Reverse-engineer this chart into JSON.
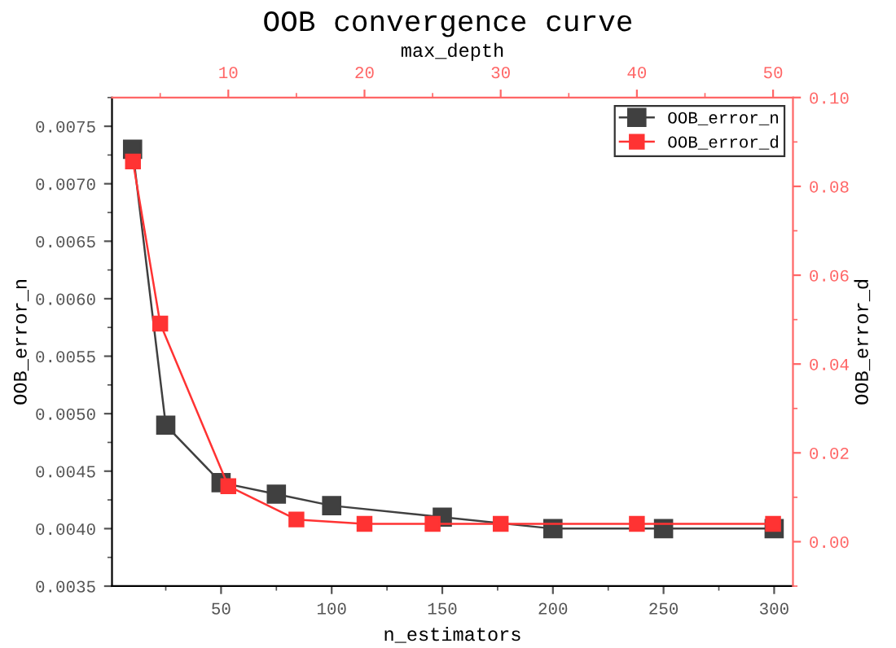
{
  "chart_data": [
    {
      "type": "line",
      "title": "OOB convergence curve",
      "xlabel": "n_estimators",
      "ylabel": "OOB_error_n",
      "xlim": [
        0.7,
        308.5
      ],
      "xticks": [
        50,
        100,
        150,
        200,
        250,
        300
      ],
      "ylim": [
        0.0035,
        0.00775
      ],
      "yticks": [
        {
          "value": 0.0035,
          "label": "0.0035"
        },
        {
          "value": 0.004,
          "label": "0.0040"
        },
        {
          "value": 0.0045,
          "label": "0.0045"
        },
        {
          "value": 0.005,
          "label": "0.0050"
        },
        {
          "value": 0.0055,
          "label": "0.0055"
        },
        {
          "value": 0.006,
          "label": "0.0060"
        },
        {
          "value": 0.0065,
          "label": "0.0065"
        },
        {
          "value": 0.007,
          "label": "0.0070"
        },
        {
          "value": 0.0075,
          "label": "0.0075"
        }
      ],
      "marker": "square",
      "line_style": "solid",
      "legend": "top right",
      "grid": false,
      "series": [
        {
          "name": "OOB_error_n",
          "color": "#404040",
          "x": [
            10,
            25,
            50,
            75,
            100,
            150,
            200,
            250,
            300
          ],
          "values": [
            0.0073,
            0.0049,
            0.0044,
            0.0043,
            0.0042,
            0.0041,
            0.004,
            0.004,
            0.004
          ]
        }
      ]
    },
    {
      "type": "line",
      "xlabel": "max_depth",
      "ylabel": "OOB_error_d",
      "xlim": [
        1.46,
        51.46
      ],
      "xticks": [
        10,
        20,
        30,
        40,
        50
      ],
      "ylim": [
        -0.01,
        0.1
      ],
      "yticks": [
        {
          "value": 0,
          "label": "0.00"
        },
        {
          "value": 0.02,
          "label": "0.02"
        },
        {
          "value": 0.04,
          "label": "0.04"
        },
        {
          "value": 0.06,
          "label": "0.06"
        },
        {
          "value": 0.08,
          "label": "0.08"
        },
        {
          "value": 0.1,
          "label": "0.10"
        }
      ],
      "marker": "square",
      "line_style": "solid",
      "legend": "top right",
      "grid": false,
      "series": [
        {
          "name": "OOB_error_d",
          "color": "#ff3333",
          "x": [
            3,
            5,
            10,
            15,
            20,
            25,
            30,
            40,
            50
          ],
          "values": [
            0.0856,
            0.0491,
            0.0125,
            0.005,
            0.004,
            0.004,
            0.004,
            0.004,
            0.004
          ]
        }
      ]
    }
  ]
}
